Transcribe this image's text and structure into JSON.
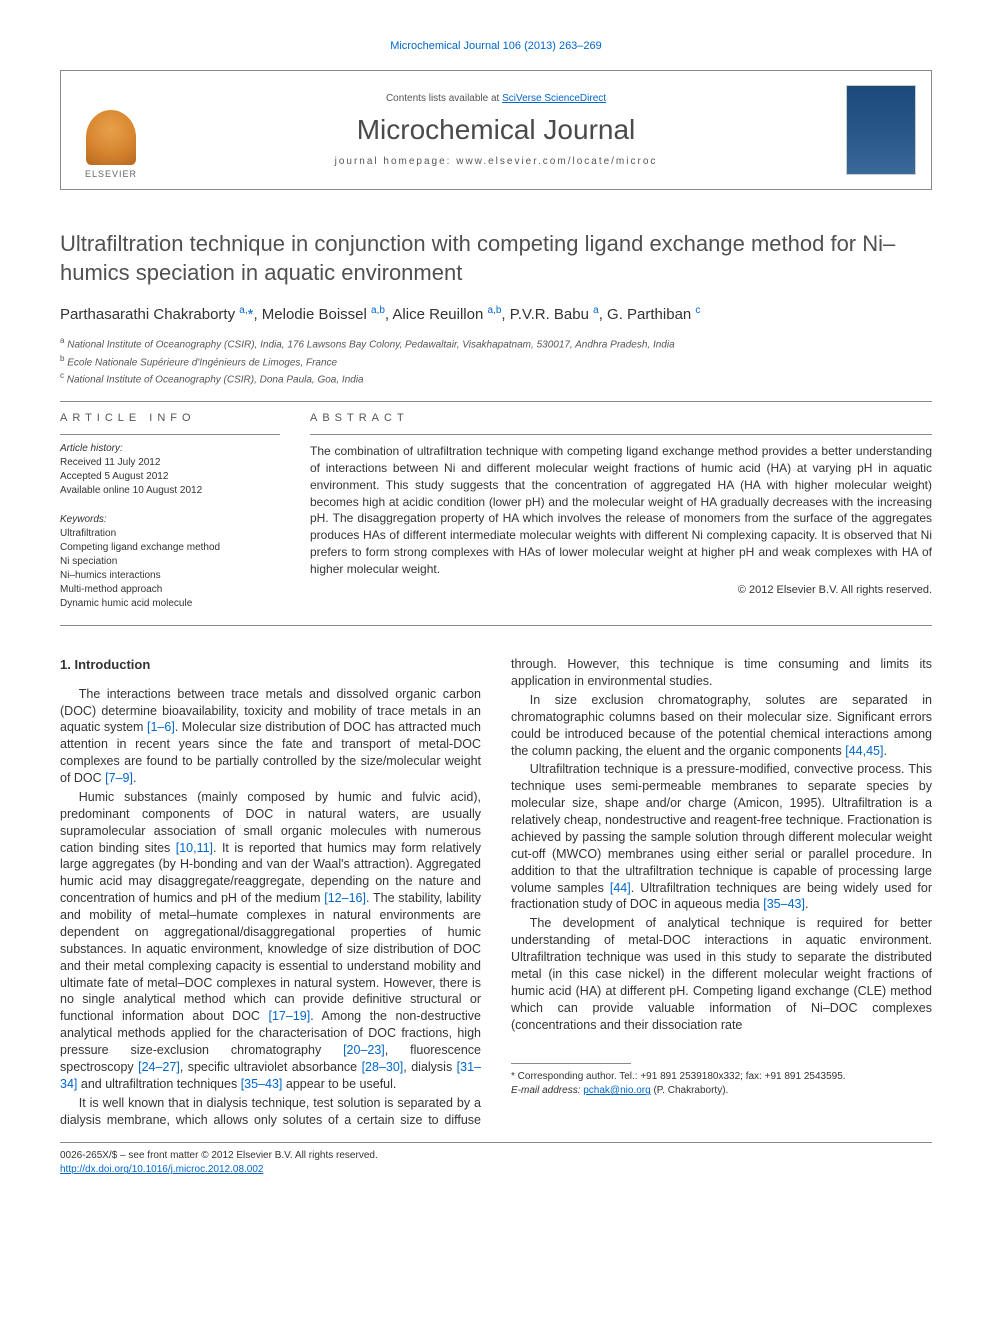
{
  "top_link": "Microchemical Journal 106 (2013) 263–269",
  "header": {
    "contents_prefix": "Contents lists available at ",
    "contents_link": "SciVerse ScienceDirect",
    "journal_name": "Microchemical Journal",
    "homepage_label": "journal homepage: www.elsevier.com/locate/microc",
    "publisher": "ELSEVIER"
  },
  "article": {
    "title": "Ultrafiltration technique in conjunction with competing ligand exchange method for Ni–humics speciation in aquatic environment",
    "authors_html": "Parthasarathi Chakraborty <span class='sup'>a,</span><span class='star'>*</span>, Melodie Boissel <span class='sup'>a,b</span>, Alice Reuillon <span class='sup'>a,b</span>, P.V.R. Babu <span class='sup'>a</span>, G. Parthiban <span class='sup'>c</span>",
    "affiliations": [
      {
        "sup": "a",
        "text": "National Institute of Oceanography (CSIR), India, 176 Lawsons Bay Colony, Pedawaltair, Visakhapatnam, 530017, Andhra Pradesh, India"
      },
      {
        "sup": "b",
        "text": "Ecole Nationale Supérieure d'Ingénieurs de Limoges, France"
      },
      {
        "sup": "c",
        "text": "National Institute of Oceanography (CSIR), Dona Paula, Goa, India"
      }
    ]
  },
  "info": {
    "head": "ARTICLE INFO",
    "history_head": "Article history:",
    "history": [
      "Received 11 July 2012",
      "Accepted 5 August 2012",
      "Available online 10 August 2012"
    ],
    "keywords_head": "Keywords:",
    "keywords": [
      "Ultrafiltration",
      "Competing ligand exchange method",
      "Ni speciation",
      "Ni–humics interactions",
      "Multi-method approach",
      "Dynamic humic acid molecule"
    ]
  },
  "abstract": {
    "head": "ABSTRACT",
    "body": "The combination of ultrafiltration technique with competing ligand exchange method provides a better understanding of interactions between Ni and different molecular weight fractions of humic acid (HA) at varying pH in aquatic environment. This study suggests that the concentration of aggregated HA (HA with higher molecular weight) becomes high at acidic condition (lower pH) and the molecular weight of HA gradually decreases with the increasing pH. The disaggregation property of HA which involves the release of monomers from the surface of the aggregates produces HAs of different intermediate molecular weights with different Ni complexing capacity. It is observed that Ni prefers to form strong complexes with HAs of lower molecular weight at higher pH and weak complexes with HA of higher molecular weight.",
    "copyright": "© 2012 Elsevier B.V. All rights reserved."
  },
  "body": {
    "section_heading": "1. Introduction",
    "p1": "The interactions between trace metals and dissolved organic carbon (DOC) determine bioavailability, toxicity and mobility of trace metals in an aquatic system <span class='cite'>[1–6]</span>. Molecular size distribution of DOC has attracted much attention in recent years since the fate and transport of metal-DOC complexes are found to be partially controlled by the size/molecular weight of DOC <span class='cite'>[7–9]</span>.",
    "p2": "Humic substances (mainly composed by humic and fulvic acid), predominant components of DOC in natural waters, are usually supramolecular association of small organic molecules with numerous cation binding sites <span class='cite'>[10,11]</span>. It is reported that humics may form relatively large aggregates (by H-bonding and van der Waal's attraction). Aggregated humic acid may disaggregate/reaggregate, depending on the nature and concentration of humics and pH of the medium <span class='cite'>[12–16]</span>. The stability, lability and mobility of metal–humate complexes in natural environments are dependent on aggregational/disaggregational properties of humic substances. In aquatic environment, knowledge of size distribution of DOC and their metal complexing capacity is essential to understand mobility and ultimate fate of metal–DOC complexes in natural system. However, there is no single analytical method which can provide definitive structural or functional information about DOC <span class='cite'>[17–19]</span>. Among the non-destructive analytical methods applied for the characterisation of DOC fractions, high pressure size-exclusion chromatography <span class='cite'>[20–23]</span>, fluorescence spectroscopy <span class='cite'>[24–27]</span>, specific ultraviolet absorbance <span class='cite'>[28–30]</span>, dialysis <span class='cite'>[31–34]</span> and ultrafiltration techniques <span class='cite'>[35–43]</span> appear to be useful.",
    "p3": "It is well known that in dialysis technique, test solution is separated by a dialysis membrane, which allows only solutes of a certain size to diffuse through. However, this technique is time consuming and limits its application in environmental studies.",
    "p4": "In size exclusion chromatography, solutes are separated in chromatographic columns based on their molecular size. Significant errors could be introduced because of the potential chemical interactions among the column packing, the eluent and the organic components <span class='cite'>[44,45]</span>.",
    "p5": "Ultrafiltration technique is a pressure-modified, convective process. This technique uses semi-permeable membranes to separate species by molecular size, shape and/or charge (Amicon, 1995). Ultrafiltration is a relatively cheap, nondestructive and reagent-free technique. Fractionation is achieved by passing the sample solution through different molecular weight cut-off (MWCO) membranes using either serial or parallel procedure. In addition to that the ultrafiltration technique is capable of processing large volume samples <span class='cite'>[44]</span>. Ultrafiltration techniques are being widely used for fractionation study of DOC in aqueous media <span class='cite'>[35–43]</span>.",
    "p6": "The development of analytical technique is required for better understanding of metal-DOC interactions in aquatic environment. Ultrafiltration technique was used in this study to separate the distributed metal (in this case nickel) in the different molecular weight fractions of humic acid (HA) at different pH. Competing ligand exchange (CLE) method which can provide valuable information of Ni–DOC complexes (concentrations and their dissociation rate"
  },
  "footnote": {
    "corr": "Corresponding author. Tel.: +91 891 2539180x332; fax: +91 891 2543595.",
    "email_label": "E-mail address:",
    "email": "pchak@nio.org",
    "email_person": "(P. Chakraborty)."
  },
  "footer": {
    "line1": "0026-265X/$ – see front matter © 2012 Elsevier B.V. All rights reserved.",
    "doi": "http://dx.doi.org/10.1016/j.microc.2012.08.002"
  },
  "colors": {
    "link": "#0066cc",
    "text": "#333333",
    "heading": "#505050",
    "rule": "#888888"
  }
}
